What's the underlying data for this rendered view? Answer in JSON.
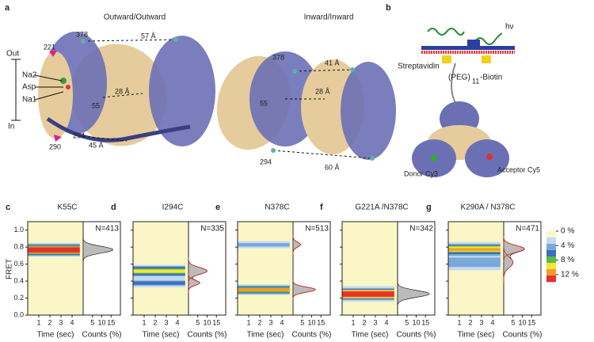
{
  "top": {
    "letter_a": "a",
    "title_outward": "Outward/Outward",
    "title_inward": "Inward/Inward",
    "letter_b": "b",
    "out": "Out",
    "in": "In",
    "na2": "Na2",
    "asp": "Asp",
    "na1": "Na1",
    "outward_labels": {
      "r221": "221",
      "r378": "378",
      "d57": "57 Å",
      "d28": "28 Å",
      "r55": "55",
      "r294": "294",
      "r290": "290",
      "d45": "45 Å"
    },
    "inward_labels": {
      "r378": "378",
      "d41": "41 Å",
      "d28": "28 Å",
      "r55": "55",
      "r294": "294",
      "d60": "60 Å"
    },
    "b_labels": {
      "hv": "hν",
      "streptavidin": "Streptavidin",
      "peg": "(PEG)",
      "peg_sub": "11",
      "biotin": "-Biotin",
      "donor": "Donor Cy3",
      "acceptor": "Acceptor Cy5"
    }
  },
  "fret_axis": {
    "label": "FRET",
    "lim": [
      0,
      1.1
    ],
    "ticks": [
      {
        "value": 0,
        "label": "0.0"
      },
      0.2,
      0.4,
      0.6,
      0.8,
      {
        "value": 1,
        "label": "1.0"
      }
    ]
  },
  "time_axis": {
    "label": "Time (sec)",
    "lim": [
      0,
      5
    ],
    "ticks": [
      1,
      2,
      3,
      4
    ]
  },
  "counts_axis": {
    "label": "Counts (%)",
    "lim": [
      0,
      20
    ],
    "ticks": [
      5,
      10,
      15
    ]
  },
  "colorbar": {
    "lim": [
      0,
      14
    ],
    "colors": [
      "#fbf6c6",
      "#c4daf0",
      "#79a9db",
      "#3d6fba",
      "#5db84b",
      "#f2e634",
      "#f39a2b",
      "#e6302a"
    ],
    "ticks": [
      {
        "value": 0,
        "label": "0 %"
      },
      {
        "value": 4,
        "label": "4 %"
      },
      {
        "value": 8,
        "label": "8 %"
      },
      {
        "value": 12,
        "label": "12 %"
      }
    ]
  },
  "panels": [
    {
      "letter": "c",
      "title": "K55C",
      "n": "N=413",
      "peaks": [
        {
          "center": 0.77,
          "sd": 0.04,
          "counts": 16
        }
      ]
    },
    {
      "letter": "d",
      "title": "I294C",
      "n": "N=335",
      "peaks": [
        {
          "center": 0.52,
          "sd": 0.04,
          "counts": 10
        },
        {
          "center": 0.38,
          "sd": 0.03,
          "counts": 6
        }
      ]
    },
    {
      "letter": "e",
      "title": "N378C",
      "n": "N=513",
      "peaks": [
        {
          "center": 0.3,
          "sd": 0.03,
          "counts": 12
        },
        {
          "center": 0.83,
          "sd": 0.03,
          "counts": 4
        }
      ]
    },
    {
      "letter": "f",
      "title": "G221A /N378C",
      "n": "N=342",
      "peaks": [
        {
          "center": 0.25,
          "sd": 0.04,
          "counts": 17
        }
      ]
    },
    {
      "letter": "g",
      "title": "K290A / N378C",
      "n": "N=471",
      "peaks": [
        {
          "center": 0.78,
          "sd": 0.04,
          "counts": 11
        },
        {
          "center": 0.62,
          "sd": 0.06,
          "counts": 5
        }
      ]
    }
  ]
}
